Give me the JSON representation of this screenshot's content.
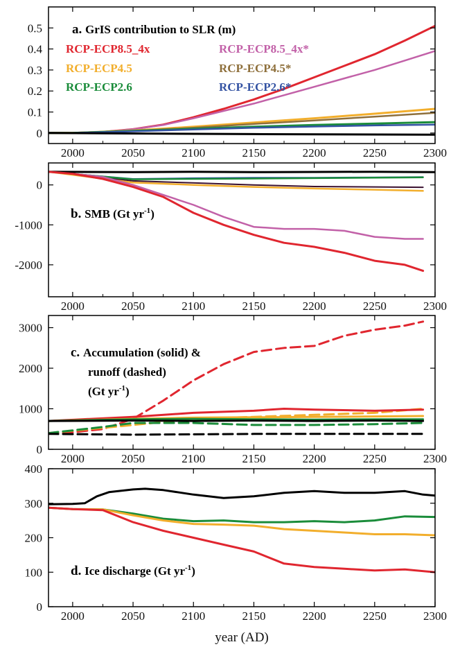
{
  "colors": {
    "rcp85": "#e0262f",
    "rcp85s": "#c261a8",
    "rcp45": "#f2ae2c",
    "rcp45s": "#8e6f3b",
    "rcp26": "#1a8c3a",
    "rcp26s": "#3453a3",
    "ctrl": "#000000",
    "ctrl2": "#5a6b7a",
    "dark": "#3a1030"
  },
  "xlabel": "year (AD)",
  "x_ticks": [
    "2000",
    "2050",
    "2100",
    "2150",
    "2200",
    "2250",
    "2300"
  ],
  "chart_data": [
    {
      "id": "a",
      "type": "line",
      "title": "GrIS contribution to SLR (m)",
      "panel_letter": "a.",
      "xlim": [
        1980,
        2300
      ],
      "ylim": [
        -0.05,
        0.6
      ],
      "y_ticks": [
        "0",
        "0.1",
        "0.2",
        "0.3",
        "0.4",
        "0.5"
      ],
      "legend": [
        {
          "label": "RCP-ECP8.5_4x",
          "color": "#e0262f"
        },
        {
          "label": "RCP-ECP8.5_4x*",
          "color": "#c261a8"
        },
        {
          "label": "RCP-ECP4.5",
          "color": "#f2ae2c"
        },
        {
          "label": "RCP-ECP4.5*",
          "color": "#8e6f3b"
        },
        {
          "label": "RCP-ECP2.6",
          "color": "#1a8c3a"
        },
        {
          "label": "RCP-ECP2.6*",
          "color": "#3453a3"
        }
      ],
      "series": [
        {
          "name": "RCP-ECP8.5_4x",
          "color": "#e0262f",
          "width": 3,
          "x": [
            1980,
            2000,
            2025,
            2050,
            2075,
            2100,
            2125,
            2150,
            2175,
            2200,
            2225,
            2250,
            2275,
            2300
          ],
          "y": [
            0,
            0,
            0.005,
            0.018,
            0.04,
            0.075,
            0.115,
            0.16,
            0.21,
            0.265,
            0.32,
            0.375,
            0.44,
            0.51
          ]
        },
        {
          "name": "RCP-ECP8.5_4x*",
          "color": "#c261a8",
          "width": 2.5,
          "x": [
            1980,
            2000,
            2025,
            2050,
            2075,
            2100,
            2125,
            2150,
            2175,
            2200,
            2225,
            2250,
            2275,
            2300
          ],
          "y": [
            0,
            0,
            0.005,
            0.018,
            0.038,
            0.07,
            0.105,
            0.14,
            0.18,
            0.22,
            0.26,
            0.3,
            0.345,
            0.39
          ]
        },
        {
          "name": "RCP-ECP4.5",
          "color": "#f2ae2c",
          "width": 3,
          "x": [
            1980,
            2000,
            2050,
            2100,
            2150,
            2200,
            2250,
            2300
          ],
          "y": [
            0,
            0,
            0.012,
            0.03,
            0.05,
            0.07,
            0.092,
            0.115
          ]
        },
        {
          "name": "RCP-ECP4.5*",
          "color": "#8e6f3b",
          "width": 2.5,
          "x": [
            1980,
            2000,
            2050,
            2100,
            2150,
            2200,
            2250,
            2300
          ],
          "y": [
            0,
            0,
            0.01,
            0.025,
            0.043,
            0.06,
            0.078,
            0.096
          ]
        },
        {
          "name": "RCP-ECP2.6",
          "color": "#1a8c3a",
          "width": 3,
          "x": [
            1980,
            2000,
            2050,
            2100,
            2150,
            2200,
            2250,
            2300
          ],
          "y": [
            0,
            0,
            0.01,
            0.02,
            0.03,
            0.038,
            0.045,
            0.052
          ]
        },
        {
          "name": "RCP-ECP2.6*",
          "color": "#3453a3",
          "width": 2.5,
          "x": [
            1980,
            2000,
            2050,
            2100,
            2150,
            2200,
            2250,
            2300
          ],
          "y": [
            0,
            0,
            0.008,
            0.017,
            0.025,
            0.031,
            0.036,
            0.04
          ]
        },
        {
          "color": "#000000",
          "width": 3,
          "x": [
            1980,
            2050,
            2150,
            2300
          ],
          "y": [
            0,
            -0.002,
            -0.005,
            -0.008
          ]
        }
      ]
    },
    {
      "id": "b",
      "type": "line",
      "title": "SMB (Gt yr",
      "title_sup": "-1",
      "title_close": ")",
      "panel_letter": "b.",
      "xlim": [
        1980,
        2300
      ],
      "ylim": [
        -2800,
        550
      ],
      "y_ticks": [
        "-2000",
        "-1000",
        "0"
      ],
      "series": [
        {
          "color": "#000000",
          "width": 3,
          "x": [
            1980,
            2050,
            2100,
            2150,
            2200,
            2250,
            2300
          ],
          "y": [
            330,
            320,
            330,
            320,
            325,
            330,
            320
          ]
        },
        {
          "color": "#3a1030",
          "width": 2,
          "x": [
            1980,
            2050,
            2100,
            2150,
            2200,
            2250,
            2290
          ],
          "y": [
            330,
            100,
            50,
            0,
            -40,
            -50,
            -60
          ]
        },
        {
          "name": "RCP-ECP2.6*",
          "color": "#3453a3",
          "width": 2,
          "x": [
            1980,
            2050,
            2100,
            2150,
            2200,
            2250,
            2290
          ],
          "y": [
            330,
            150,
            170,
            180,
            180,
            190,
            200
          ]
        },
        {
          "name": "RCP-ECP2.6",
          "color": "#1a8c3a",
          "width": 2.5,
          "x": [
            1980,
            2050,
            2100,
            2150,
            2200,
            2250,
            2290
          ],
          "y": [
            330,
            140,
            150,
            160,
            170,
            180,
            190
          ]
        },
        {
          "name": "RCP-ECP4.5",
          "color": "#f2ae2c",
          "width": 2.5,
          "x": [
            1980,
            2050,
            2100,
            2150,
            2200,
            2250,
            2290
          ],
          "y": [
            330,
            60,
            0,
            -50,
            -90,
            -120,
            -150
          ]
        },
        {
          "name": "RCP-ECP8.5_4x*",
          "color": "#c261a8",
          "width": 2.5,
          "x": [
            1980,
            2000,
            2025,
            2050,
            2075,
            2100,
            2125,
            2150,
            2175,
            2200,
            2225,
            2250,
            2275,
            2290
          ],
          "y": [
            330,
            280,
            200,
            0,
            -250,
            -500,
            -800,
            -1050,
            -1100,
            -1100,
            -1150,
            -1300,
            -1350,
            -1350
          ]
        },
        {
          "name": "RCP-ECP8.5_4x",
          "color": "#e0262f",
          "width": 3,
          "x": [
            1980,
            2000,
            2025,
            2050,
            2075,
            2100,
            2125,
            2150,
            2175,
            2200,
            2225,
            2250,
            2275,
            2290
          ],
          "y": [
            330,
            280,
            150,
            -50,
            -300,
            -700,
            -1000,
            -1250,
            -1450,
            -1550,
            -1700,
            -1900,
            -2000,
            -2150
          ]
        }
      ]
    },
    {
      "id": "c",
      "type": "line",
      "title_lines": [
        "Accumulation (solid) &",
        "runoff (dashed)",
        "(Gt yr"
      ],
      "title_sup": "-1",
      "title_close": ")",
      "panel_letter": "c.",
      "xlim": [
        1980,
        2300
      ],
      "ylim": [
        0,
        3300
      ],
      "y_ticks": [
        "0",
        "1000",
        "2000",
        "3000"
      ],
      "series": [
        {
          "name": "RCP-ECP8.5_4x",
          "color": "#e0262f",
          "width": 3,
          "dash": "14 7",
          "x": [
            1980,
            2000,
            2025,
            2050,
            2075,
            2100,
            2125,
            2150,
            2175,
            2200,
            2225,
            2250,
            2275,
            2290
          ],
          "y": [
            400,
            420,
            500,
            750,
            1200,
            1700,
            2100,
            2400,
            2500,
            2550,
            2800,
            2950,
            3050,
            3150
          ]
        },
        {
          "name": "RCP-ECP4.5",
          "color": "#f2ae2c",
          "width": 3,
          "dash": "14 7",
          "x": [
            1980,
            2050,
            2100,
            2150,
            2200,
            2250,
            2290
          ],
          "y": [
            400,
            600,
            750,
            800,
            850,
            900,
            1000
          ]
        },
        {
          "name": "RCP-ECP2.6",
          "color": "#1a8c3a",
          "width": 3,
          "dash": "14 7",
          "x": [
            1980,
            2025,
            2050,
            2100,
            2150,
            2200,
            2250,
            2290
          ],
          "y": [
            400,
            550,
            650,
            650,
            600,
            600,
            620,
            650
          ]
        },
        {
          "color": "#000000",
          "width": 3,
          "dash": "14 7",
          "x": [
            1980,
            2050,
            2100,
            2150,
            2200,
            2250,
            2290
          ],
          "y": [
            380,
            360,
            370,
            380,
            380,
            380,
            380
          ]
        },
        {
          "name": "RCP-ECP8.5_4x",
          "color": "#e0262f",
          "width": 3,
          "x": [
            1980,
            2050,
            2100,
            2150,
            2175,
            2200,
            2250,
            2290
          ],
          "y": [
            700,
            800,
            900,
            950,
            1000,
            980,
            950,
            980
          ]
        },
        {
          "name": "RCP-ECP4.5",
          "color": "#f2ae2c",
          "width": 3,
          "x": [
            1980,
            2050,
            2100,
            2150,
            2200,
            2250,
            2290
          ],
          "y": [
            700,
            750,
            780,
            790,
            800,
            810,
            820
          ]
        },
        {
          "name": "RCP-ECP2.6",
          "color": "#1a8c3a",
          "width": 3,
          "x": [
            1980,
            2050,
            2100,
            2150,
            2200,
            2250,
            2290
          ],
          "y": [
            700,
            740,
            750,
            740,
            730,
            740,
            740
          ]
        },
        {
          "color": "#000000",
          "width": 3,
          "x": [
            1980,
            2050,
            2100,
            2150,
            2200,
            2250,
            2290
          ],
          "y": [
            700,
            710,
            700,
            710,
            700,
            710,
            700
          ]
        }
      ]
    },
    {
      "id": "d",
      "type": "line",
      "title": "Ice discharge (Gt yr",
      "title_sup": "-1",
      "title_close": ")",
      "panel_letter": "d.",
      "xlim": [
        1980,
        2300
      ],
      "ylim": [
        0,
        400
      ],
      "y_ticks": [
        "0",
        "100",
        "200",
        "300",
        "400"
      ],
      "series": [
        {
          "color": "#000000",
          "width": 3,
          "x": [
            1980,
            2000,
            2010,
            2020,
            2030,
            2050,
            2060,
            2075,
            2100,
            2125,
            2150,
            2175,
            2200,
            2225,
            2250,
            2275,
            2290,
            2300
          ],
          "y": [
            297,
            298,
            300,
            320,
            332,
            340,
            342,
            338,
            325,
            315,
            320,
            330,
            335,
            330,
            330,
            335,
            325,
            322
          ]
        },
        {
          "name": "RCP-ECP2.6",
          "color": "#1a8c3a",
          "width": 3,
          "x": [
            1980,
            2000,
            2025,
            2050,
            2075,
            2100,
            2125,
            2150,
            2175,
            2200,
            2225,
            2250,
            2275,
            2300
          ],
          "y": [
            287,
            283,
            282,
            270,
            255,
            248,
            250,
            245,
            245,
            248,
            245,
            250,
            262,
            260
          ]
        },
        {
          "name": "RCP-ECP4.5",
          "color": "#f2ae2c",
          "width": 3,
          "x": [
            1980,
            2000,
            2025,
            2050,
            2075,
            2100,
            2125,
            2150,
            2175,
            2200,
            2225,
            2250,
            2275,
            2300
          ],
          "y": [
            287,
            283,
            282,
            265,
            250,
            240,
            238,
            235,
            225,
            220,
            215,
            210,
            210,
            207
          ]
        },
        {
          "name": "RCP-ECP8.5_4x",
          "color": "#e0262f",
          "width": 3,
          "x": [
            1980,
            2000,
            2025,
            2050,
            2075,
            2100,
            2125,
            2150,
            2175,
            2200,
            2225,
            2250,
            2275,
            2300
          ],
          "y": [
            287,
            283,
            280,
            245,
            220,
            200,
            180,
            160,
            125,
            115,
            110,
            105,
            108,
            100
          ]
        }
      ]
    }
  ]
}
